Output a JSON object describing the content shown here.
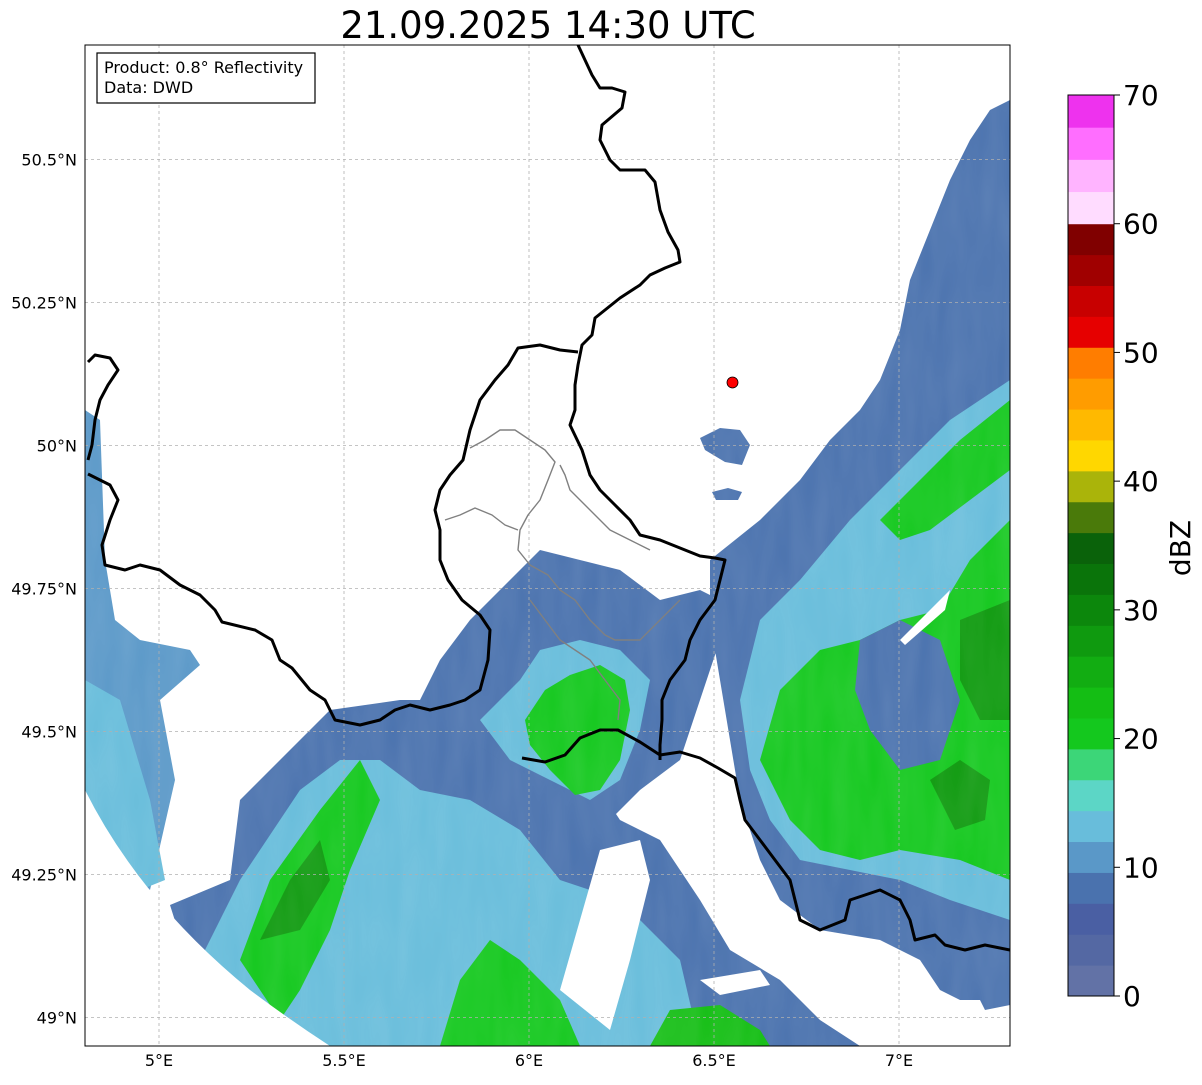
{
  "title": "21.09.2025 14:30 UTC",
  "info_box": {
    "line1": "Product: 0.8° Reflectivity",
    "line2": "Data: DWD"
  },
  "axes": {
    "lon_ticks": [
      {
        "value": 5.0,
        "label": "5°E"
      },
      {
        "value": 5.5,
        "label": "5.5°E"
      },
      {
        "value": 6.0,
        "label": "6°E"
      },
      {
        "value": 6.5,
        "label": "6.5°E"
      },
      {
        "value": 7.0,
        "label": "7°E"
      }
    ],
    "lat_ticks": [
      {
        "value": 50.5,
        "label": "50.5°N"
      },
      {
        "value": 50.25,
        "label": "50.25°N"
      },
      {
        "value": 50.0,
        "label": "50°N"
      },
      {
        "value": 49.75,
        "label": "49.75°N"
      },
      {
        "value": 49.5,
        "label": "49.5°N"
      },
      {
        "value": 49.25,
        "label": "49.25°N"
      },
      {
        "value": 49.0,
        "label": "49°N"
      }
    ],
    "grid": true
  },
  "radar_site": {
    "lon": 6.55,
    "lat": 50.11,
    "color": "#ff0000"
  },
  "colorbar": {
    "label": "dBZ",
    "min": 0,
    "max": 70,
    "ticks": [
      {
        "value": 0,
        "label": "0"
      },
      {
        "value": 10,
        "label": "10"
      },
      {
        "value": 20,
        "label": "20"
      },
      {
        "value": 30,
        "label": "30"
      },
      {
        "value": 40,
        "label": "40"
      },
      {
        "value": 50,
        "label": "50"
      },
      {
        "value": 60,
        "label": "60"
      },
      {
        "value": 70,
        "label": "70"
      }
    ],
    "colors": [
      "#6272a6",
      "#5468a3",
      "#4a5fa3",
      "#4a72ae",
      "#5a98c8",
      "#68bddb",
      "#5cd6c6",
      "#3cd678",
      "#14c81e",
      "#14be14",
      "#12ad12",
      "#0f9a0f",
      "#0c870c",
      "#0a740a",
      "#0a620a",
      "#4a7a0a",
      "#aab40a",
      "#ffd700",
      "#ffb900",
      "#ff9c00",
      "#ff7d00",
      "#e60000",
      "#c80000",
      "#a00000",
      "#800000",
      "#ffdcff",
      "#ffb4ff",
      "#ff6eff",
      "#ee32ee"
    ]
  }
}
